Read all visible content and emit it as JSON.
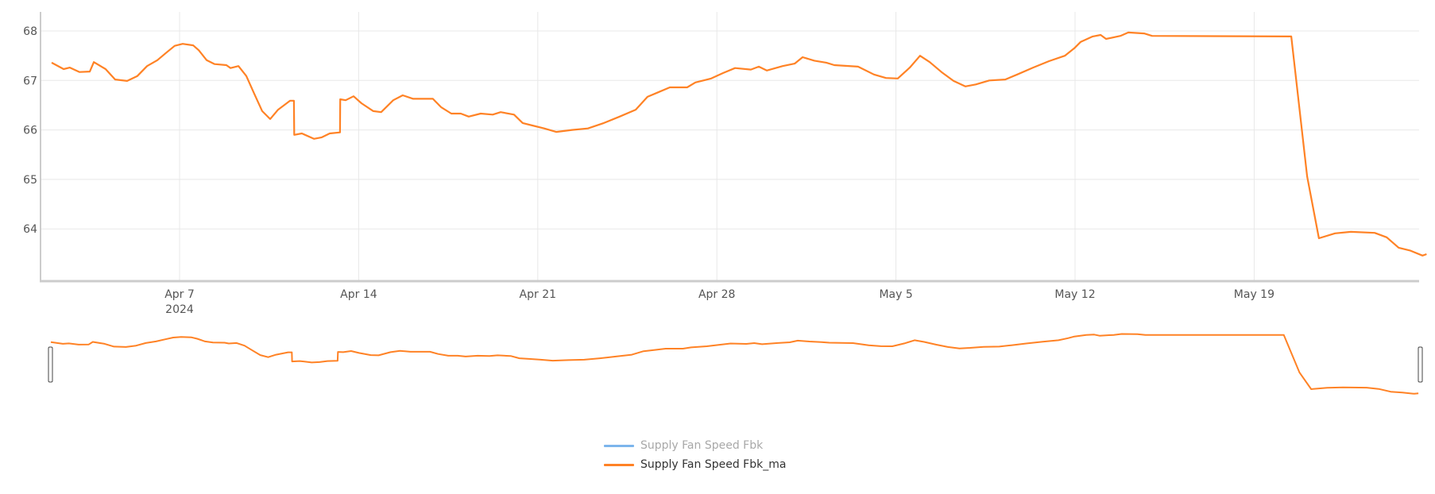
{
  "chart_data": {
    "type": "line",
    "title": "",
    "xlabel": "",
    "ylabel": "",
    "x_unit": "days since Apr 1, 2024",
    "ylim": [
      63.2,
      68.4
    ],
    "xlim": [
      1.0,
      54.8
    ],
    "grid": {
      "x": true,
      "y": true
    },
    "legend_position": "bottom-center",
    "y_ticks": [
      64,
      65,
      66,
      67,
      68
    ],
    "x_ticks": [
      {
        "day": 6,
        "label": "Apr 7",
        "sublabel": "2024"
      },
      {
        "day": 13,
        "label": "Apr 14",
        "sublabel": ""
      },
      {
        "day": 20,
        "label": "Apr 21",
        "sublabel": ""
      },
      {
        "day": 27,
        "label": "Apr 28",
        "sublabel": ""
      },
      {
        "day": 34,
        "label": "May 5",
        "sublabel": ""
      },
      {
        "day": 41,
        "label": "May 12",
        "sublabel": ""
      },
      {
        "day": 48,
        "label": "May 19",
        "sublabel": ""
      }
    ],
    "series": [
      {
        "name": "Supply Fan Speed Fbk",
        "color": "#7cb5ec",
        "visible": false,
        "x": [],
        "values": []
      },
      {
        "name": "Supply Fan Speed Fbk_ma",
        "color": "#ff8225",
        "visible": true,
        "x": [
          1.0,
          1.47,
          1.71,
          2.09,
          2.49,
          2.65,
          3.11,
          3.48,
          3.95,
          4.35,
          4.73,
          5.13,
          5.5,
          5.81,
          6.12,
          6.53,
          6.75,
          7.06,
          7.37,
          7.83,
          7.99,
          8.3,
          8.61,
          8.92,
          9.23,
          9.54,
          9.85,
          10.32,
          10.47,
          10.48,
          10.78,
          11.25,
          11.56,
          11.87,
          12.27,
          12.28,
          12.49,
          12.8,
          13.11,
          13.57,
          13.88,
          14.35,
          14.72,
          15.13,
          15.9,
          16.22,
          16.62,
          16.99,
          17.3,
          17.77,
          18.24,
          18.55,
          19.07,
          19.41,
          19.79,
          20.25,
          20.72,
          21.34,
          21.96,
          22.58,
          23.2,
          23.83,
          24.29,
          24.7,
          25.16,
          25.84,
          26.16,
          26.78,
          27.24,
          27.71,
          28.33,
          28.64,
          28.95,
          29.57,
          30.04,
          30.35,
          30.81,
          31.28,
          31.59,
          32.52,
          33.14,
          33.61,
          34.07,
          34.54,
          34.94,
          35.32,
          35.78,
          36.25,
          36.71,
          37.12,
          37.65,
          38.27,
          38.74,
          39.36,
          39.98,
          40.6,
          40.97,
          41.22,
          41.69,
          42.0,
          42.21,
          42.77,
          43.08,
          43.7,
          44.01,
          49.45,
          50.07,
          50.53,
          51.16,
          51.78,
          52.71,
          53.18,
          53.65,
          54.11,
          54.58,
          54.74
        ],
        "values": [
          67.36,
          67.23,
          67.26,
          67.17,
          67.18,
          67.37,
          67.23,
          67.02,
          66.99,
          67.09,
          67.29,
          67.41,
          67.57,
          67.7,
          67.74,
          67.71,
          67.61,
          67.41,
          67.33,
          67.31,
          67.25,
          67.29,
          67.09,
          66.73,
          66.38,
          66.22,
          66.41,
          66.59,
          66.59,
          65.9,
          65.93,
          65.82,
          65.85,
          65.93,
          65.95,
          66.62,
          66.6,
          66.68,
          66.54,
          66.38,
          66.36,
          66.6,
          66.7,
          66.63,
          66.63,
          66.46,
          66.33,
          66.33,
          66.27,
          66.33,
          66.31,
          66.36,
          66.31,
          66.14,
          66.09,
          66.03,
          65.96,
          66.0,
          66.03,
          66.14,
          66.27,
          66.41,
          66.67,
          66.76,
          66.86,
          66.86,
          66.96,
          67.04,
          67.15,
          67.25,
          67.22,
          67.28,
          67.2,
          67.29,
          67.34,
          67.47,
          67.4,
          67.36,
          67.31,
          67.28,
          67.12,
          67.05,
          67.04,
          67.26,
          67.5,
          67.37,
          67.17,
          66.99,
          66.88,
          66.92,
          67.0,
          67.02,
          67.12,
          67.26,
          67.39,
          67.5,
          67.65,
          67.78,
          67.89,
          67.92,
          67.84,
          67.9,
          67.97,
          67.95,
          67.9,
          67.89,
          65.06,
          63.81,
          63.91,
          63.94,
          63.92,
          63.83,
          63.62,
          63.56,
          63.46,
          63.49
        ]
      }
    ]
  },
  "navigator": {
    "left_handle": "range-start-handle",
    "right_handle": "range-end-handle"
  },
  "legend": {
    "items": [
      {
        "label": "Supply Fan Speed Fbk",
        "color": "#7cb5ec",
        "visible": false
      },
      {
        "label": "Supply Fan Speed Fbk_ma",
        "color": "#ff8225",
        "visible": true
      }
    ]
  }
}
